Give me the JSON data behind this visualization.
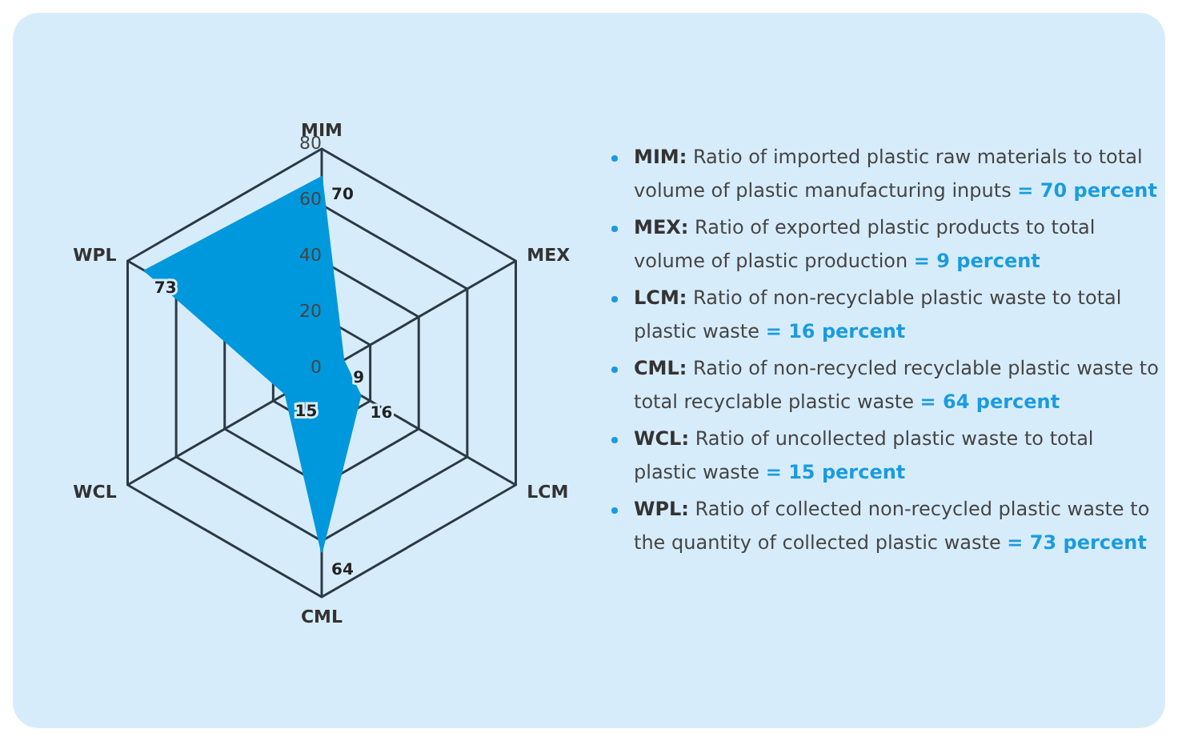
{
  "chart_data": {
    "type": "radar",
    "categories": [
      "MIM",
      "MEX",
      "LCM",
      "CML",
      "WCL",
      "WPL"
    ],
    "series": [
      {
        "color": "#0098dc",
        "values": [
          70,
          9,
          16,
          64,
          15,
          73
        ]
      }
    ],
    "ylim": [
      0,
      80
    ],
    "yticks": [
      0,
      20,
      40,
      60,
      80
    ],
    "grid": true,
    "data_labels": true,
    "annotations": [
      "MIM: Ratio of imported plastic raw materials to total volume of plastic manufacturing inputs = 70 percent",
      "MEX: Ratio of exported plastic products to total volume of plastic production = 9 percent",
      "LCM: Ratio of non-recyclable plastic waste to total plastic waste = 16 percent",
      "CML: Ratio of non-recycled recyclable plastic waste to total recyclable plastic waste = 64 percent",
      "WCL: Ratio of uncollected plastic waste to total plastic waste = 15 percent",
      "WPL: Ratio of collected non-recycled plastic waste to the quantity of collected plastic waste = 73 percent"
    ]
  }
}
